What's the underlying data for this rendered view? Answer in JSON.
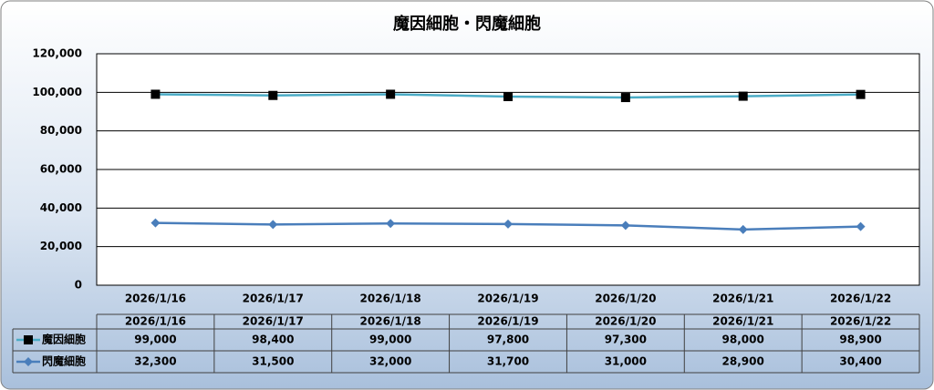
{
  "chart_data": {
    "type": "line",
    "title": "魔因細胞・閃魔細胞",
    "categories": [
      "2026/1/16",
      "2026/1/17",
      "2026/1/18",
      "2026/1/19",
      "2026/1/20",
      "2026/1/21",
      "2026/1/22"
    ],
    "series": [
      {
        "name": "魔因細胞",
        "color": "#4bacc6",
        "marker": "square",
        "marker_color": "#000000",
        "values": [
          99000,
          98400,
          99000,
          97800,
          97300,
          98000,
          98900
        ],
        "value_labels": [
          "99,000",
          "98,400",
          "99,000",
          "97,800",
          "97,300",
          "98,000",
          "98,900"
        ]
      },
      {
        "name": "閃魔細胞",
        "color": "#4a7ebb",
        "marker": "diamond",
        "marker_color": "#4a7ebb",
        "values": [
          32300,
          31500,
          32000,
          31700,
          31000,
          28900,
          30400
        ],
        "value_labels": [
          "32,300",
          "31,500",
          "32,000",
          "31,700",
          "31,000",
          "28,900",
          "30,400"
        ]
      }
    ],
    "ylim": [
      0,
      120000
    ],
    "yticks": [
      0,
      {
        "value": 20000,
        "label": "20,000"
      },
      {
        "value": 40000,
        "label": "40,000"
      },
      {
        "value": 60000,
        "label": "60,000"
      },
      {
        "value": 80000,
        "label": "80,000"
      },
      {
        "value": 100000,
        "label": "100,000"
      },
      {
        "value": 120000,
        "label": "120,000"
      }
    ],
    "grid": true,
    "data_table": true
  }
}
